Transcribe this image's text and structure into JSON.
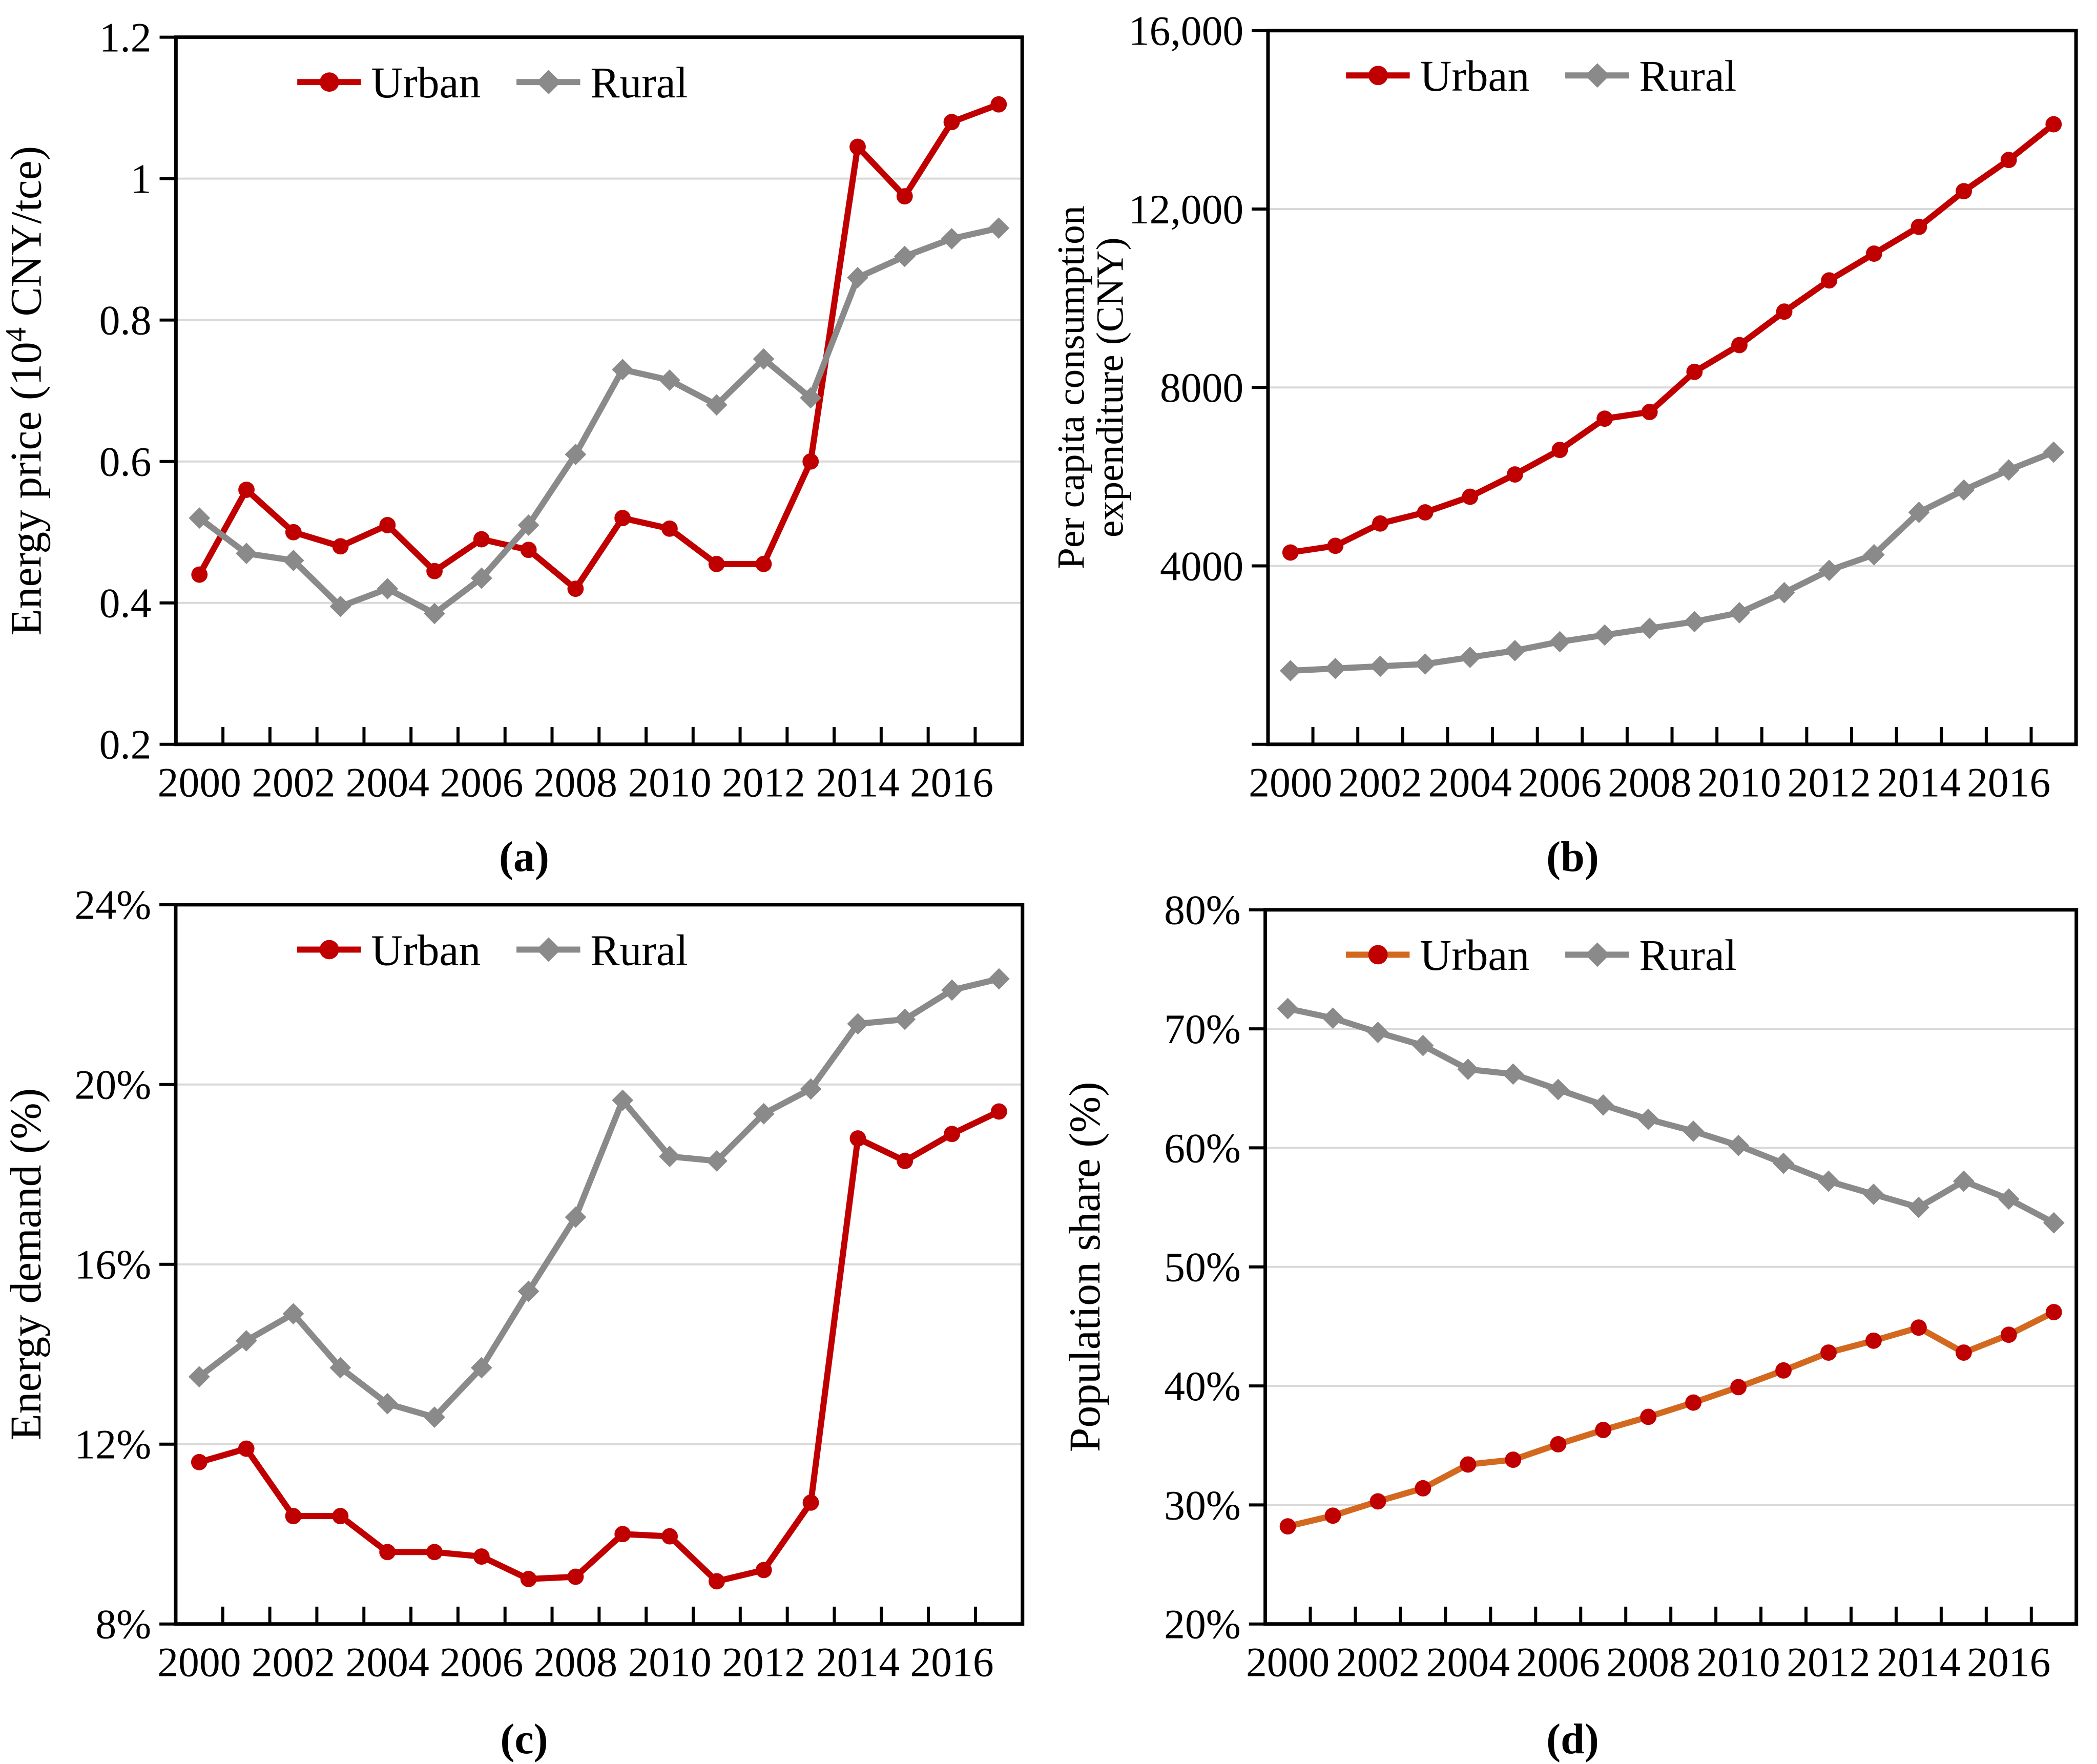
{
  "figure": {
    "background": "#ffffff",
    "colors": {
      "urban_red": "#C00000",
      "rural_gray": "#8A8A8A",
      "urban_line_panel_d": "#D2691E",
      "gridline": "#D9D9D9",
      "axis": "#000000",
      "text": "#000000"
    },
    "legend_labels": [
      "Urban",
      "Rural"
    ],
    "legend_position": "top-center"
  },
  "chart_data": [
    {
      "id": "a",
      "caption": "(a)",
      "type": "line",
      "ylabel": "Energy price (10^4 CNY/tce)",
      "ylabel_lines": [
        {
          "pre": "Energy price (10",
          "sup": "4",
          "post": " CNY/tce)"
        }
      ],
      "xlabel": "",
      "x": [
        2000,
        2001,
        2002,
        2003,
        2004,
        2005,
        2006,
        2007,
        2008,
        2009,
        2010,
        2011,
        2012,
        2013,
        2014,
        2015,
        2016,
        2017
      ],
      "xtick_labels": [
        "2000",
        "2002",
        "2004",
        "2006",
        "2008",
        "2010",
        "2012",
        "2014",
        "2016"
      ],
      "ylim": [
        0.2,
        1.2
      ],
      "ytick_values": [
        0.2,
        0.4,
        0.6,
        0.8,
        1,
        1.2
      ],
      "ytick_labels": [
        "0.2",
        "0.4",
        "0.6",
        "0.8",
        "1",
        "1.2"
      ],
      "grid": "horizontal",
      "series": [
        {
          "name": "Urban",
          "marker": "circle",
          "marker_color": "#C00000",
          "line_color": "#C00000",
          "values": [
            0.44,
            0.56,
            0.5,
            0.48,
            0.51,
            0.445,
            0.49,
            0.475,
            0.42,
            0.52,
            0.505,
            0.455,
            0.455,
            0.6,
            1.045,
            0.975,
            1.08,
            1.105
          ]
        },
        {
          "name": "Rural",
          "marker": "diamond",
          "marker_color": "#8A8A8A",
          "line_color": "#8A8A8A",
          "values": [
            0.52,
            0.47,
            0.46,
            0.395,
            0.42,
            0.385,
            0.435,
            0.51,
            0.61,
            0.73,
            0.715,
            0.68,
            0.745,
            0.69,
            0.86,
            0.89,
            0.915,
            0.93
          ]
        }
      ]
    },
    {
      "id": "b",
      "caption": "(b)",
      "type": "line",
      "ylabel": "Per capita consumption expenditure (CNY)",
      "ylabel_lines": [
        "Per capita consumption",
        "expenditure (CNY)"
      ],
      "xlabel": "",
      "x": [
        2000,
        2001,
        2002,
        2003,
        2004,
        2005,
        2006,
        2007,
        2008,
        2009,
        2010,
        2011,
        2012,
        2013,
        2014,
        2015,
        2016,
        2017
      ],
      "xtick_labels": [
        "2000",
        "2002",
        "2004",
        "2006",
        "2008",
        "2010",
        "2012",
        "2014",
        "2016"
      ],
      "ylim": [
        0,
        16000
      ],
      "ytick_values": [
        0,
        4000,
        8000,
        12000,
        16000
      ],
      "ytick_labels": [
        "",
        "4000",
        "8000",
        "12,000",
        "16,000"
      ],
      "grid": "horizontal",
      "series": [
        {
          "name": "Urban",
          "marker": "circle",
          "marker_color": "#C00000",
          "line_color": "#C00000",
          "values": [
            4300,
            4450,
            4950,
            5200,
            5550,
            6050,
            6600,
            7300,
            7450,
            8350,
            8950,
            9700,
            10400,
            11000,
            11600,
            12400,
            13100,
            13900
          ]
        },
        {
          "name": "Rural",
          "marker": "diamond",
          "marker_color": "#8A8A8A",
          "line_color": "#8A8A8A",
          "values": [
            1650,
            1700,
            1750,
            1800,
            1950,
            2100,
            2300,
            2450,
            2600,
            2750,
            2950,
            3400,
            3900,
            4250,
            5200,
            5700,
            6150,
            6550
          ]
        }
      ]
    },
    {
      "id": "c",
      "caption": "(c)",
      "type": "line",
      "ylabel": "Energy demand (%)",
      "ylabel_lines": [
        "Energy demand (%)"
      ],
      "xlabel": "",
      "x": [
        2000,
        2001,
        2002,
        2003,
        2004,
        2005,
        2006,
        2007,
        2008,
        2009,
        2010,
        2011,
        2012,
        2013,
        2014,
        2015,
        2016,
        2017
      ],
      "xtick_labels": [
        "2000",
        "2002",
        "2004",
        "2006",
        "2008",
        "2010",
        "2012",
        "2014",
        "2016"
      ],
      "ylim": [
        8,
        24
      ],
      "ytick_values": [
        8,
        12,
        16,
        20,
        24
      ],
      "ytick_labels": [
        "8%",
        "12%",
        "16%",
        "20%",
        "24%"
      ],
      "grid": "horizontal",
      "series": [
        {
          "name": "Urban",
          "marker": "circle",
          "marker_color": "#C00000",
          "line_color": "#C00000",
          "values": [
            11.6,
            11.9,
            10.4,
            10.4,
            9.6,
            9.6,
            9.5,
            9.0,
            9.05,
            10.0,
            9.95,
            8.95,
            9.2,
            10.7,
            18.8,
            18.3,
            18.9,
            19.4
          ]
        },
        {
          "name": "Rural",
          "marker": "diamond",
          "marker_color": "#8A8A8A",
          "line_color": "#8A8A8A",
          "values": [
            13.5,
            14.3,
            14.9,
            13.7,
            12.9,
            12.6,
            13.7,
            15.4,
            17.05,
            19.65,
            18.4,
            18.3,
            19.35,
            19.9,
            21.35,
            21.45,
            22.1,
            22.35
          ]
        }
      ]
    },
    {
      "id": "d",
      "caption": "(d)",
      "type": "line",
      "ylabel": "Population share (%)",
      "ylabel_lines": [
        "Population share (%)"
      ],
      "xlabel": "",
      "x": [
        2000,
        2001,
        2002,
        2003,
        2004,
        2005,
        2006,
        2007,
        2008,
        2009,
        2010,
        2011,
        2012,
        2013,
        2014,
        2015,
        2016,
        2017
      ],
      "xtick_labels": [
        "2000",
        "2002",
        "2004",
        "2006",
        "2008",
        "2010",
        "2012",
        "2014",
        "2016"
      ],
      "ylim": [
        20,
        80
      ],
      "ytick_values": [
        20,
        30,
        40,
        50,
        60,
        70,
        80
      ],
      "ytick_labels": [
        "20%",
        "30%",
        "40%",
        "50%",
        "60%",
        "70%",
        "80%"
      ],
      "grid": "horizontal",
      "series": [
        {
          "name": "Urban",
          "marker": "circle",
          "marker_color": "#C00000",
          "line_color": "#D2691E",
          "values": [
            28.2,
            29.1,
            30.3,
            31.4,
            33.4,
            33.8,
            35.1,
            36.3,
            37.4,
            38.6,
            39.9,
            41.3,
            42.8,
            43.8,
            44.9,
            42.8,
            44.3,
            46.2
          ]
        },
        {
          "name": "Rural",
          "marker": "diamond",
          "marker_color": "#8A8A8A",
          "line_color": "#8A8A8A",
          "values": [
            71.7,
            70.9,
            69.7,
            68.6,
            66.6,
            66.2,
            64.9,
            63.6,
            62.4,
            61.4,
            60.2,
            58.7,
            57.2,
            56.1,
            55.0,
            57.2,
            55.7,
            53.7
          ]
        }
      ]
    }
  ]
}
